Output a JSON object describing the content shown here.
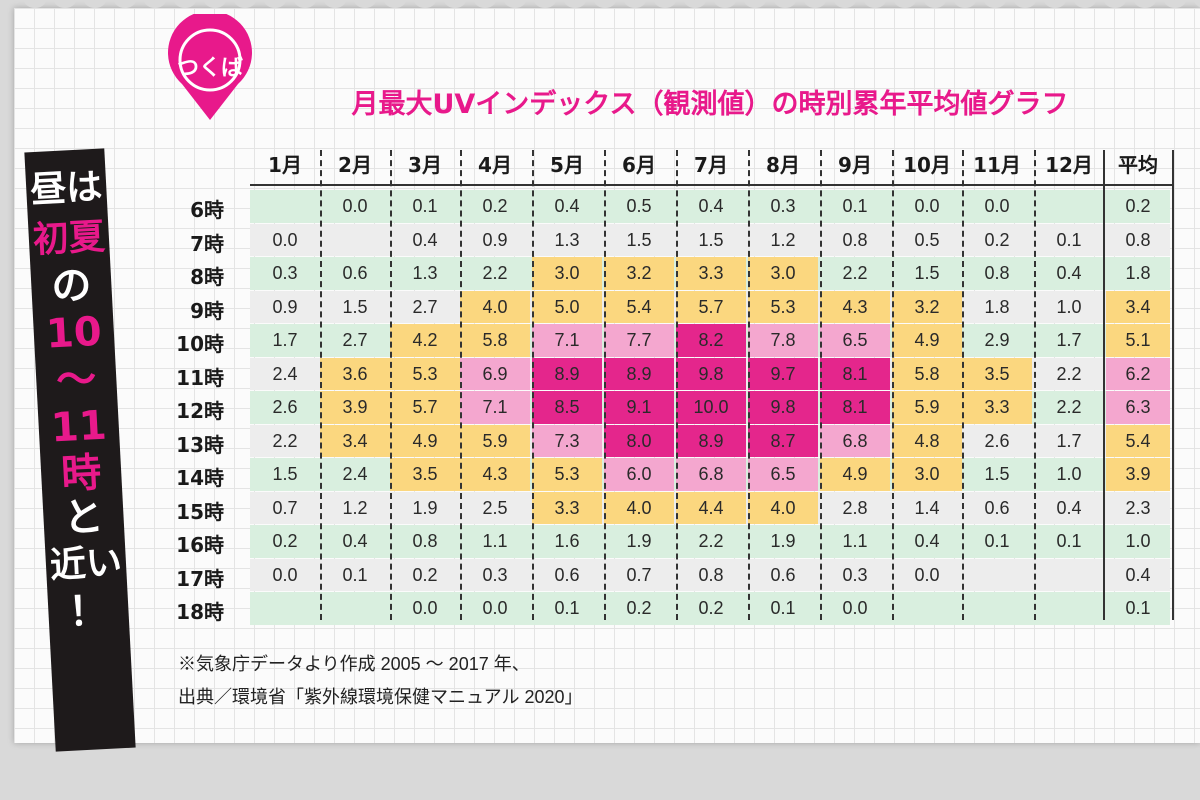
{
  "location": "つくば",
  "title": "月最大UVインデックス（観測値）の時別累年平均値グラフ",
  "side_text": [
    "昼は",
    "初夏",
    "の",
    "10",
    "〜",
    "11",
    "時",
    "と",
    "近い",
    "！"
  ],
  "notes": {
    "line1": "※気象庁データより作成 2005 ～ 2017 年、",
    "line2": "出典／環境省「紫外線環境保健マニュアル 2020」"
  },
  "colors": {
    "pink_accent": "#e8198b",
    "band_green": "#d9efdf",
    "band_gray": "#ededed",
    "level_yellow": "#fbd77f",
    "level_lightpink": "#f4a7cf",
    "level_magenta": "#e4268c",
    "banner_dark": "#1e1a1b"
  },
  "chart_data": {
    "type": "heatmap",
    "title": "月最大UVインデックス（観測値）の時別累年平均値グラフ",
    "columns": [
      "1月",
      "2月",
      "3月",
      "4月",
      "5月",
      "6月",
      "7月",
      "8月",
      "9月",
      "10月",
      "11月",
      "12月",
      "平均"
    ],
    "rows": [
      "6時",
      "7時",
      "8時",
      "9時",
      "10時",
      "11時",
      "12時",
      "13時",
      "14時",
      "15時",
      "16時",
      "17時",
      "18時"
    ],
    "values": [
      [
        "",
        "0.0",
        "0.1",
        "0.2",
        "0.4",
        "0.5",
        "0.4",
        "0.3",
        "0.1",
        "0.0",
        "0.0",
        "",
        "0.2"
      ],
      [
        "0.0",
        "",
        "0.4",
        "0.9",
        "1.3",
        "1.5",
        "1.5",
        "1.2",
        "0.8",
        "0.5",
        "0.2",
        "0.1",
        "0.8"
      ],
      [
        "0.3",
        "0.6",
        "1.3",
        "2.2",
        "3.0",
        "3.2",
        "3.3",
        "3.0",
        "2.2",
        "1.5",
        "0.8",
        "0.4",
        "1.8"
      ],
      [
        "0.9",
        "1.5",
        "2.7",
        "4.0",
        "5.0",
        "5.4",
        "5.7",
        "5.3",
        "4.3",
        "3.2",
        "1.8",
        "1.0",
        "3.4"
      ],
      [
        "1.7",
        "2.7",
        "4.2",
        "5.8",
        "7.1",
        "7.7",
        "8.2",
        "7.8",
        "6.5",
        "4.9",
        "2.9",
        "1.7",
        "5.1"
      ],
      [
        "2.4",
        "3.6",
        "5.3",
        "6.9",
        "8.9",
        "8.9",
        "9.8",
        "9.7",
        "8.1",
        "5.8",
        "3.5",
        "2.2",
        "6.2"
      ],
      [
        "2.6",
        "3.9",
        "5.7",
        "7.1",
        "8.5",
        "9.1",
        "10.0",
        "9.8",
        "8.1",
        "5.9",
        "3.3",
        "2.2",
        "6.3"
      ],
      [
        "2.2",
        "3.4",
        "4.9",
        "5.9",
        "7.3",
        "8.0",
        "8.9",
        "8.7",
        "6.8",
        "4.8",
        "2.6",
        "1.7",
        "5.4"
      ],
      [
        "1.5",
        "2.4",
        "3.5",
        "4.3",
        "5.3",
        "6.0",
        "6.8",
        "6.5",
        "4.9",
        "3.0",
        "1.5",
        "1.0",
        "3.9"
      ],
      [
        "0.7",
        "1.2",
        "1.9",
        "2.5",
        "3.3",
        "4.0",
        "4.4",
        "4.0",
        "2.8",
        "1.4",
        "0.6",
        "0.4",
        "2.3"
      ],
      [
        "0.2",
        "0.4",
        "0.8",
        "1.1",
        "1.6",
        "1.9",
        "2.2",
        "1.9",
        "1.1",
        "0.4",
        "0.1",
        "0.1",
        "1.0"
      ],
      [
        "0.0",
        "0.1",
        "0.2",
        "0.3",
        "0.6",
        "0.7",
        "0.8",
        "0.6",
        "0.3",
        "0.0",
        "",
        "",
        "0.4"
      ],
      [
        "",
        "",
        "0.0",
        "0.0",
        "0.1",
        "0.2",
        "0.2",
        "0.1",
        "0.0",
        "",
        "",
        "",
        "0.1"
      ]
    ]
  }
}
